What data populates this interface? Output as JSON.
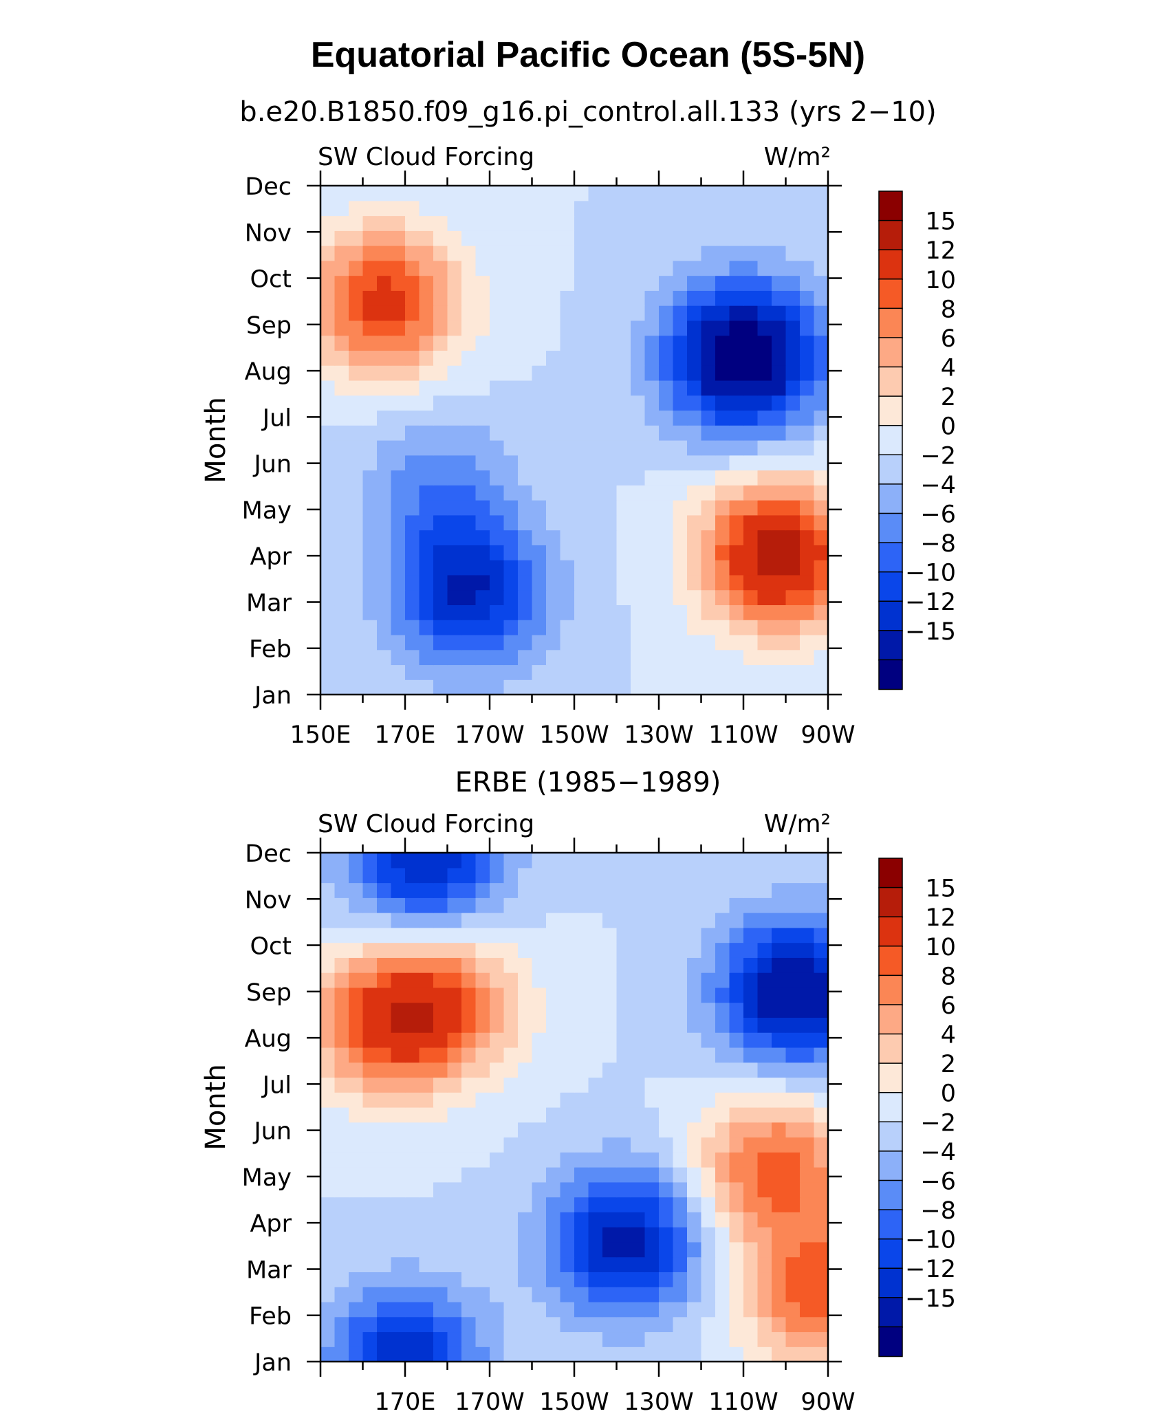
{
  "title": "Equatorial Pacific Ocean (5S-5N)",
  "panels": [
    {
      "title": "b.e20.B1850.f09_g16.pi_control.all.133 (yrs 2−10)"
    },
    {
      "title": "ERBE (1985−1989)"
    }
  ],
  "chart_data": [
    {
      "type": "heatmap",
      "title": "b.e20.B1850.f09_g16.pi_control.all.133 (yrs 2−10)",
      "left_label": "SW Cloud Forcing",
      "units": "W/m²",
      "ylabel": "Month",
      "y_ticks": [
        "Jan",
        "Feb",
        "Mar",
        "Apr",
        "May",
        "Jun",
        "Jul",
        "Aug",
        "Sep",
        "Oct",
        "Nov",
        "Dec"
      ],
      "x_ticks": [
        "150E",
        "170E",
        "170W",
        "150W",
        "130W",
        "110W",
        "90W"
      ],
      "xlim": [
        150,
        270
      ],
      "contour_levels": [
        -15,
        -12,
        -10,
        -8,
        -6,
        -4,
        -2,
        0,
        2,
        4,
        6,
        8,
        10,
        12,
        15
      ],
      "colorbar_labels": [
        "15",
        "12",
        "10",
        "8",
        "6",
        "4",
        "2",
        "0",
        "−2",
        "−4",
        "−6",
        "−8",
        "−10",
        "−12",
        "−15"
      ],
      "colors": [
        "#000080",
        "#0019a9",
        "#0032d0",
        "#0a46ea",
        "#2d64f6",
        "#5a8cf7",
        "#8cb0f9",
        "#b8d0fb",
        "#dbe9fd",
        "#fde8d8",
        "#fdcbb0",
        "#fda985",
        "#fb8655",
        "#f55a26",
        "#dc3310",
        "#b61d0a",
        "#8b0000"
      ],
      "centers": [
        {
          "lon": 165,
          "month": 9.5,
          "value": 13
        },
        {
          "lon": 250,
          "month": 8.3,
          "value": -18
        },
        {
          "lon": 258,
          "month": 4.0,
          "value": 17
        },
        {
          "lon": 185,
          "month": 3.2,
          "value": -12
        },
        {
          "lon": 178,
          "month": 5.5,
          "value": -5
        }
      ]
    },
    {
      "type": "heatmap",
      "title": "ERBE (1985−1989)",
      "left_label": "SW Cloud Forcing",
      "units": "W/m²",
      "ylabel": "Month",
      "y_ticks": [
        "Jan",
        "Feb",
        "Mar",
        "Apr",
        "May",
        "Jun",
        "Jul",
        "Aug",
        "Sep",
        "Oct",
        "Nov",
        "Dec"
      ],
      "x_ticks": [
        "170E",
        "170W",
        "150W",
        "130W",
        "110W",
        "90W"
      ],
      "xlim": [
        150,
        270
      ],
      "contour_levels": [
        -15,
        -12,
        -10,
        -8,
        -6,
        -4,
        -2,
        0,
        2,
        4,
        6,
        8,
        10,
        12,
        15
      ],
      "colorbar_labels": [
        "15",
        "12",
        "10",
        "8",
        "6",
        "4",
        "2",
        "0",
        "−2",
        "−4",
        "−6",
        "−8",
        "−10",
        "−12",
        "−15"
      ],
      "colors": [
        "#000080",
        "#0019a9",
        "#0032d0",
        "#0a46ea",
        "#2d64f6",
        "#5a8cf7",
        "#8cb0f9",
        "#b8d0fb",
        "#dbe9fd",
        "#fde8d8",
        "#fdcbb0",
        "#fda985",
        "#fb8655",
        "#f55a26",
        "#dc3310",
        "#b61d0a",
        "#8b0000"
      ],
      "centers": [
        {
          "lon": 165,
          "month": 8.3,
          "value": 11
        },
        {
          "lon": 180,
          "month": 8.8,
          "value": 9
        },
        {
          "lon": 262,
          "month": 9.0,
          "value": -15
        },
        {
          "lon": 222,
          "month": 3.6,
          "value": -13
        },
        {
          "lon": 170,
          "month": 1.0,
          "value": -12
        },
        {
          "lon": 175,
          "month": 11.8,
          "value": -12
        },
        {
          "lon": 257,
          "month": 5.2,
          "value": 11
        },
        {
          "lon": 268,
          "month": 2.5,
          "value": 11
        }
      ]
    }
  ]
}
